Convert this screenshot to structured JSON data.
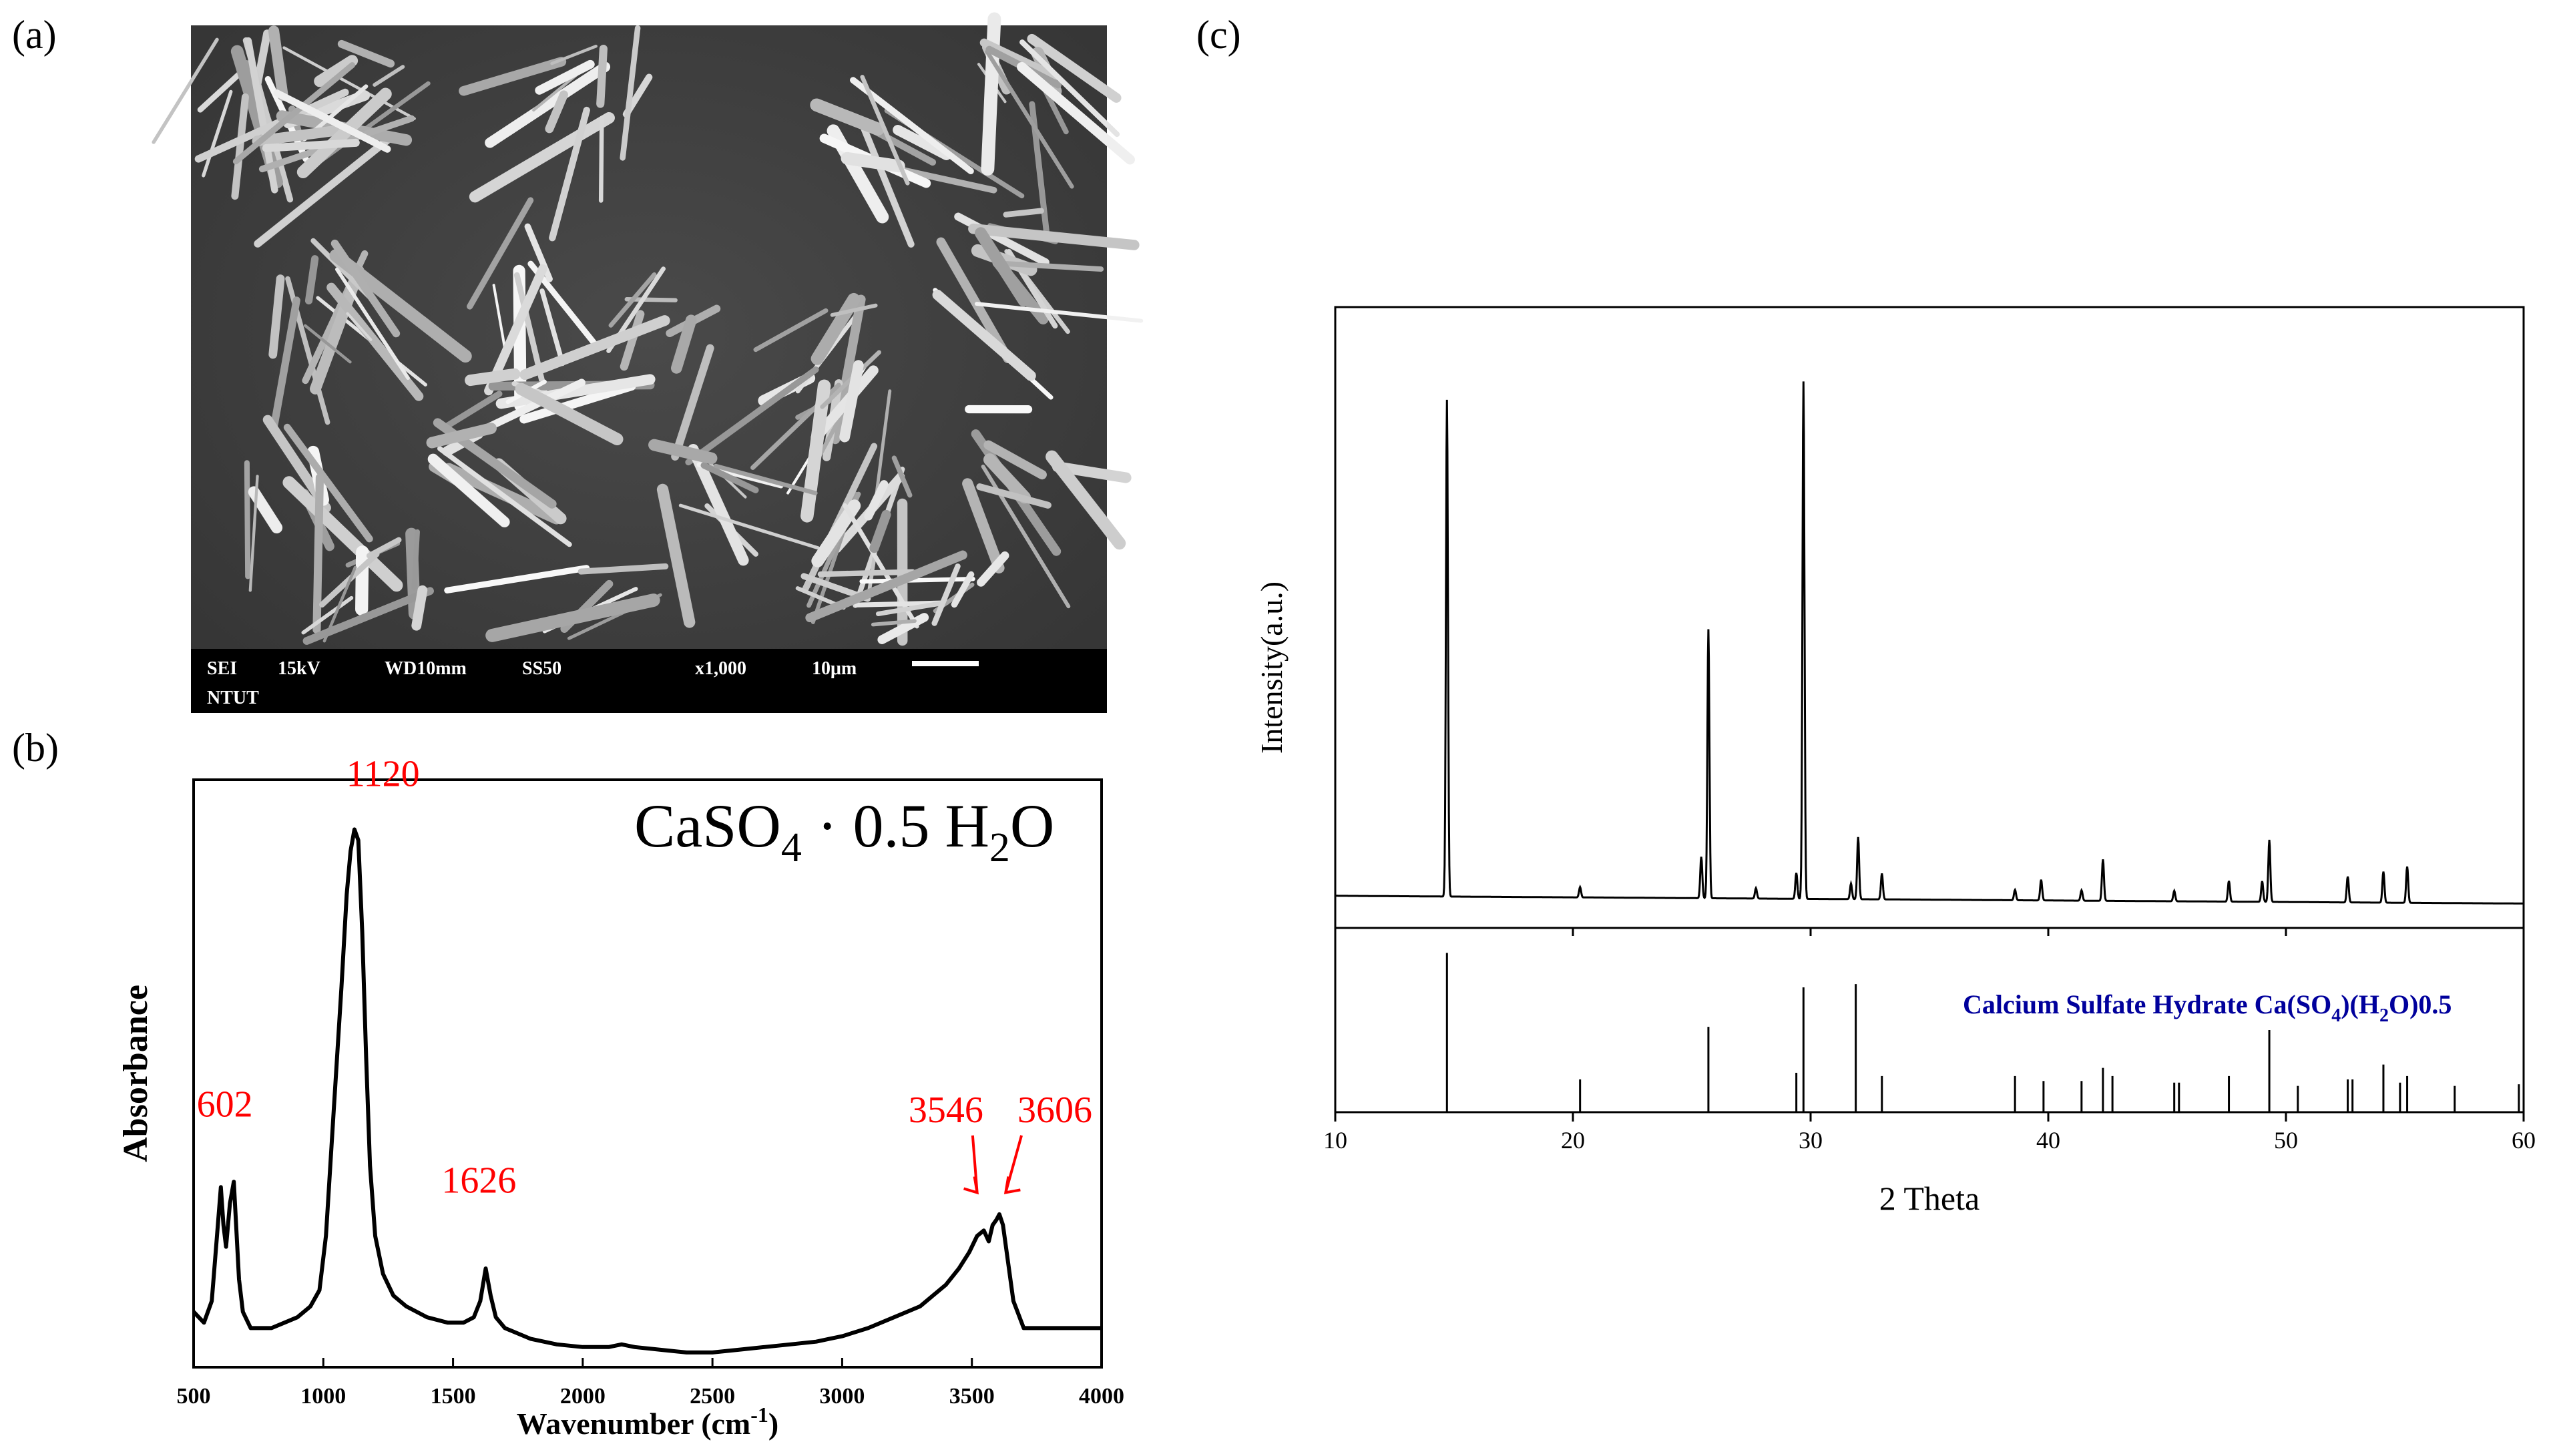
{
  "panels": {
    "a": {
      "label": "(a)",
      "sem_info": {
        "mode": "SEI",
        "voltage": "15kV",
        "working_distance": "WD10mm",
        "spot": "SS50",
        "magnification": "x1,000",
        "scale": "10μm",
        "institution": "NTUT"
      }
    },
    "b": {
      "label": "(b)"
    },
    "c": {
      "label": "(c)"
    }
  },
  "chart_data": [
    {
      "type": "line",
      "panel": "b",
      "title_parts": {
        "main": "CaSO",
        "sub1": "4",
        "mid": " · 0.5 H",
        "sub2": "2",
        "end": "O"
      },
      "xlabel": "Wavenumber (cm",
      "xlabel_sup": "-1",
      "xlabel_end": ")",
      "ylabel": "Absorbance",
      "xlim": [
        500,
        4000
      ],
      "ylim": [
        0,
        1
      ],
      "xticks": [
        500,
        1000,
        1500,
        2000,
        2500,
        3000,
        3500,
        4000
      ],
      "series": [
        {
          "color": "#000000",
          "x": [
            500,
            540,
            570,
            590,
            605,
            615,
            625,
            640,
            655,
            665,
            675,
            690,
            720,
            760,
            800,
            850,
            900,
            950,
            985,
            1010,
            1040,
            1070,
            1090,
            1105,
            1120,
            1135,
            1150,
            1165,
            1180,
            1200,
            1230,
            1270,
            1320,
            1400,
            1480,
            1540,
            1580,
            1605,
            1626,
            1645,
            1665,
            1700,
            1800,
            1900,
            2000,
            2100,
            2150,
            2200,
            2300,
            2400,
            2500,
            2600,
            2700,
            2800,
            2900,
            2950,
            3000,
            3100,
            3200,
            3300,
            3400,
            3450,
            3490,
            3520,
            3546,
            3565,
            3580,
            3595,
            3606,
            3620,
            3640,
            3660,
            3700,
            3800,
            3900,
            4000
          ],
          "y": [
            0.08,
            0.06,
            0.1,
            0.22,
            0.31,
            0.24,
            0.2,
            0.28,
            0.32,
            0.23,
            0.14,
            0.08,
            0.05,
            0.05,
            0.05,
            0.06,
            0.07,
            0.09,
            0.12,
            0.22,
            0.45,
            0.68,
            0.85,
            0.93,
            0.97,
            0.95,
            0.78,
            0.55,
            0.35,
            0.22,
            0.15,
            0.11,
            0.09,
            0.07,
            0.06,
            0.06,
            0.07,
            0.1,
            0.16,
            0.11,
            0.07,
            0.05,
            0.03,
            0.02,
            0.015,
            0.015,
            0.02,
            0.015,
            0.01,
            0.005,
            0.005,
            0.01,
            0.015,
            0.02,
            0.025,
            0.03,
            0.035,
            0.05,
            0.07,
            0.09,
            0.13,
            0.16,
            0.19,
            0.22,
            0.23,
            0.21,
            0.24,
            0.25,
            0.26,
            0.24,
            0.17,
            0.1,
            0.05,
            0.05,
            0.05,
            0.05
          ]
        }
      ],
      "annotations": [
        {
          "text": "602",
          "x": 620,
          "y": 0.44,
          "color": "#ff0000"
        },
        {
          "text": "1120",
          "x": 1230,
          "y": 1.05,
          "color": "#ff0000"
        },
        {
          "text": "1626",
          "x": 1600,
          "y": 0.3,
          "color": "#ff0000"
        },
        {
          "text": "3546",
          "x": 3400,
          "y": 0.43,
          "color": "#ff0000"
        },
        {
          "text": "3606",
          "x": 3820,
          "y": 0.43,
          "color": "#ff0000"
        }
      ]
    },
    {
      "type": "line",
      "panel": "c",
      "xlabel": "2 Theta",
      "ylabel": "Intensity(a.u.)",
      "xlim": [
        10,
        60
      ],
      "xticks": [
        10,
        20,
        30,
        40,
        50,
        60
      ],
      "measured_ylim": [
        0,
        1
      ],
      "measured_peaks": [
        {
          "x": 14.7,
          "y": 0.96
        },
        {
          "x": 20.3,
          "y": 0.02
        },
        {
          "x": 25.4,
          "y": 0.08
        },
        {
          "x": 25.7,
          "y": 0.52
        },
        {
          "x": 27.7,
          "y": 0.02
        },
        {
          "x": 29.4,
          "y": 0.05
        },
        {
          "x": 29.7,
          "y": 1.0
        },
        {
          "x": 31.7,
          "y": 0.03
        },
        {
          "x": 32.0,
          "y": 0.12
        },
        {
          "x": 33.0,
          "y": 0.05
        },
        {
          "x": 38.6,
          "y": 0.02
        },
        {
          "x": 39.7,
          "y": 0.04
        },
        {
          "x": 41.4,
          "y": 0.02
        },
        {
          "x": 42.3,
          "y": 0.08
        },
        {
          "x": 45.3,
          "y": 0.02
        },
        {
          "x": 47.6,
          "y": 0.04
        },
        {
          "x": 49.0,
          "y": 0.04
        },
        {
          "x": 49.3,
          "y": 0.12
        },
        {
          "x": 52.6,
          "y": 0.05
        },
        {
          "x": 54.1,
          "y": 0.06
        },
        {
          "x": 55.1,
          "y": 0.07
        }
      ],
      "reference_label": "Calcium Sulfate Hydrate Ca(SO",
      "reference_label_sub1": "4",
      "reference_label_mid": ")(H",
      "reference_label_sub2": "2",
      "reference_label_end": "O)0.5",
      "reference_color": "#00009c",
      "reference_lines": [
        {
          "x": 14.7,
          "y": 0.97
        },
        {
          "x": 20.3,
          "y": 0.2
        },
        {
          "x": 25.7,
          "y": 0.52
        },
        {
          "x": 29.4,
          "y": 0.24
        },
        {
          "x": 29.7,
          "y": 0.76
        },
        {
          "x": 31.9,
          "y": 0.78
        },
        {
          "x": 33.0,
          "y": 0.22
        },
        {
          "x": 38.6,
          "y": 0.22
        },
        {
          "x": 39.8,
          "y": 0.19
        },
        {
          "x": 41.4,
          "y": 0.19
        },
        {
          "x": 42.3,
          "y": 0.27
        },
        {
          "x": 42.7,
          "y": 0.22
        },
        {
          "x": 45.3,
          "y": 0.18
        },
        {
          "x": 45.5,
          "y": 0.18
        },
        {
          "x": 47.6,
          "y": 0.22
        },
        {
          "x": 49.3,
          "y": 0.5
        },
        {
          "x": 50.5,
          "y": 0.16
        },
        {
          "x": 52.6,
          "y": 0.2
        },
        {
          "x": 52.8,
          "y": 0.2
        },
        {
          "x": 54.1,
          "y": 0.29
        },
        {
          "x": 54.8,
          "y": 0.18
        },
        {
          "x": 55.1,
          "y": 0.22
        },
        {
          "x": 57.1,
          "y": 0.16
        },
        {
          "x": 59.8,
          "y": 0.17
        }
      ]
    }
  ]
}
